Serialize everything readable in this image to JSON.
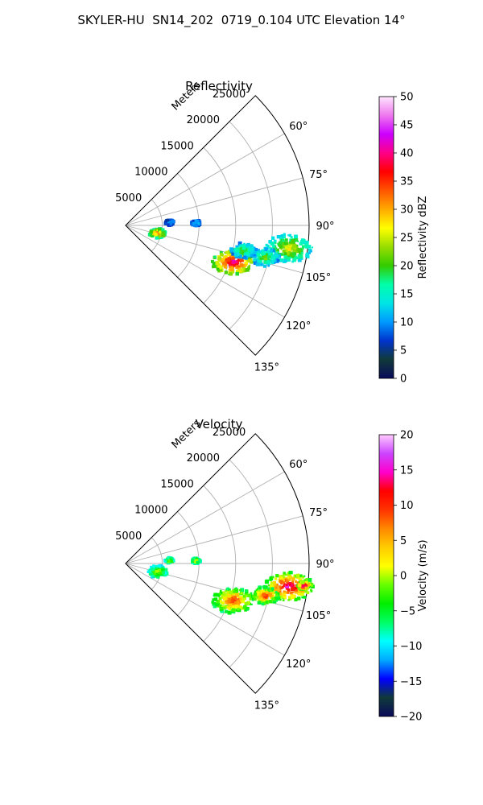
{
  "figure_title": "SKYLER-HU  SN14_202  0719_0.104 UTC Elevation 14°",
  "chart_data": [
    {
      "type": "polar-sector",
      "title": "Reflectivity",
      "radial_label": "Meters",
      "radial_ticks": [
        5000,
        10000,
        15000,
        20000,
        25000
      ],
      "rlim": [
        0,
        25000
      ],
      "angle_ticks": [
        "60°",
        "75°",
        "90°",
        "105°",
        "120°",
        "135°"
      ],
      "angle_range_deg": [
        45,
        135
      ],
      "grid": true,
      "colorbar": {
        "label": "Reflectivity dBZ",
        "min": 0,
        "max": 50,
        "ticks": [
          "0",
          "5",
          "10",
          "15",
          "20",
          "25",
          "30",
          "35",
          "40",
          "45",
          "50"
        ],
        "stops": [
          "#0a0a5a",
          "#103a3a",
          "#0033cc",
          "#0099ff",
          "#00e5e5",
          "#00ffaa",
          "#33cc00",
          "#99dd00",
          "#ffff00",
          "#ffaa00",
          "#ff5500",
          "#ff0000",
          "#ff0088",
          "#cc00ff",
          "#ee77ee",
          "#ffe6ff"
        ]
      },
      "echo_cells": [
        {
          "az": 98,
          "r": 22500,
          "size": 2600,
          "core": 27
        },
        {
          "az": 103,
          "r": 19500,
          "size": 1600,
          "core": 22
        },
        {
          "az": 109,
          "r": 15500,
          "size": 2300,
          "core": 42
        },
        {
          "az": 104,
          "r": 4500,
          "size": 900,
          "core": 34
        },
        {
          "az": 86,
          "r": 6000,
          "size": 500,
          "core": 14
        },
        {
          "az": 88,
          "r": 9600,
          "size": 500,
          "core": 16
        },
        {
          "az": 102,
          "r": 16500,
          "size": 1400,
          "core": 22
        }
      ]
    },
    {
      "type": "polar-sector",
      "title": "Velocity",
      "radial_label": "Meters",
      "radial_ticks": [
        5000,
        10000,
        15000,
        20000,
        25000
      ],
      "rlim": [
        0,
        25000
      ],
      "angle_ticks": [
        "60°",
        "75°",
        "90°",
        "105°",
        "120°",
        "135°"
      ],
      "angle_range_deg": [
        45,
        135
      ],
      "grid": true,
      "colorbar": {
        "label": "Velocity (m/s)",
        "min": -20,
        "max": 20,
        "ticks": [
          "−20",
          "−15",
          "−10",
          "−5",
          "0",
          "5",
          "10",
          "15",
          "20"
        ],
        "stops": [
          "#0a0a5a",
          "#103a3a",
          "#0000ff",
          "#00aaff",
          "#00ffff",
          "#00ff66",
          "#00ee00",
          "#66ff00",
          "#ffff00",
          "#ffcc00",
          "#ff8800",
          "#ff3300",
          "#ff0000",
          "#ff00cc",
          "#cc44ff",
          "#ffccff"
        ]
      },
      "echo_cells": [
        {
          "az": 98,
          "r": 22500,
          "size": 2600,
          "core": 16
        },
        {
          "az": 97,
          "r": 24500,
          "size": 700,
          "core": 18
        },
        {
          "az": 103,
          "r": 19500,
          "size": 1600,
          "core": 11
        },
        {
          "az": 109,
          "r": 15500,
          "size": 2300,
          "core": 11
        },
        {
          "az": 104,
          "r": 4500,
          "size": 1100,
          "core": 2
        },
        {
          "az": 86,
          "r": 6000,
          "size": 500,
          "core": 2
        },
        {
          "az": 88,
          "r": 9600,
          "size": 500,
          "core": 3
        }
      ]
    }
  ]
}
